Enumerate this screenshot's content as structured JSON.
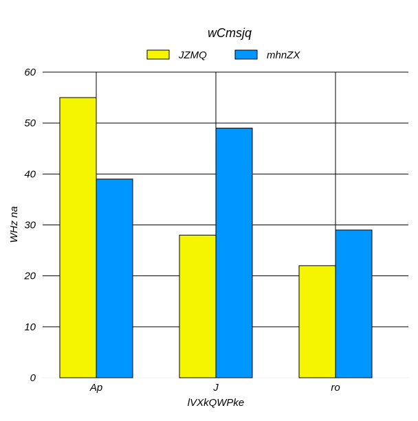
{
  "chart_data": {
    "type": "bar",
    "title": "wCmsjq",
    "xlabel": "lVXkQWPke",
    "ylabel": "WHz na",
    "categories": [
      "Ap",
      "J",
      "ro"
    ],
    "series": [
      {
        "name": "JZMQ",
        "color": "#f5f500",
        "values": [
          55,
          28,
          22
        ]
      },
      {
        "name": "mhnZX",
        "color": "#0096ff",
        "values": [
          39,
          49,
          29
        ]
      }
    ],
    "ylim": [
      0,
      60
    ],
    "yticks": [
      0,
      10,
      20,
      30,
      40,
      50,
      60
    ],
    "grid": true,
    "legend_position": "top"
  }
}
